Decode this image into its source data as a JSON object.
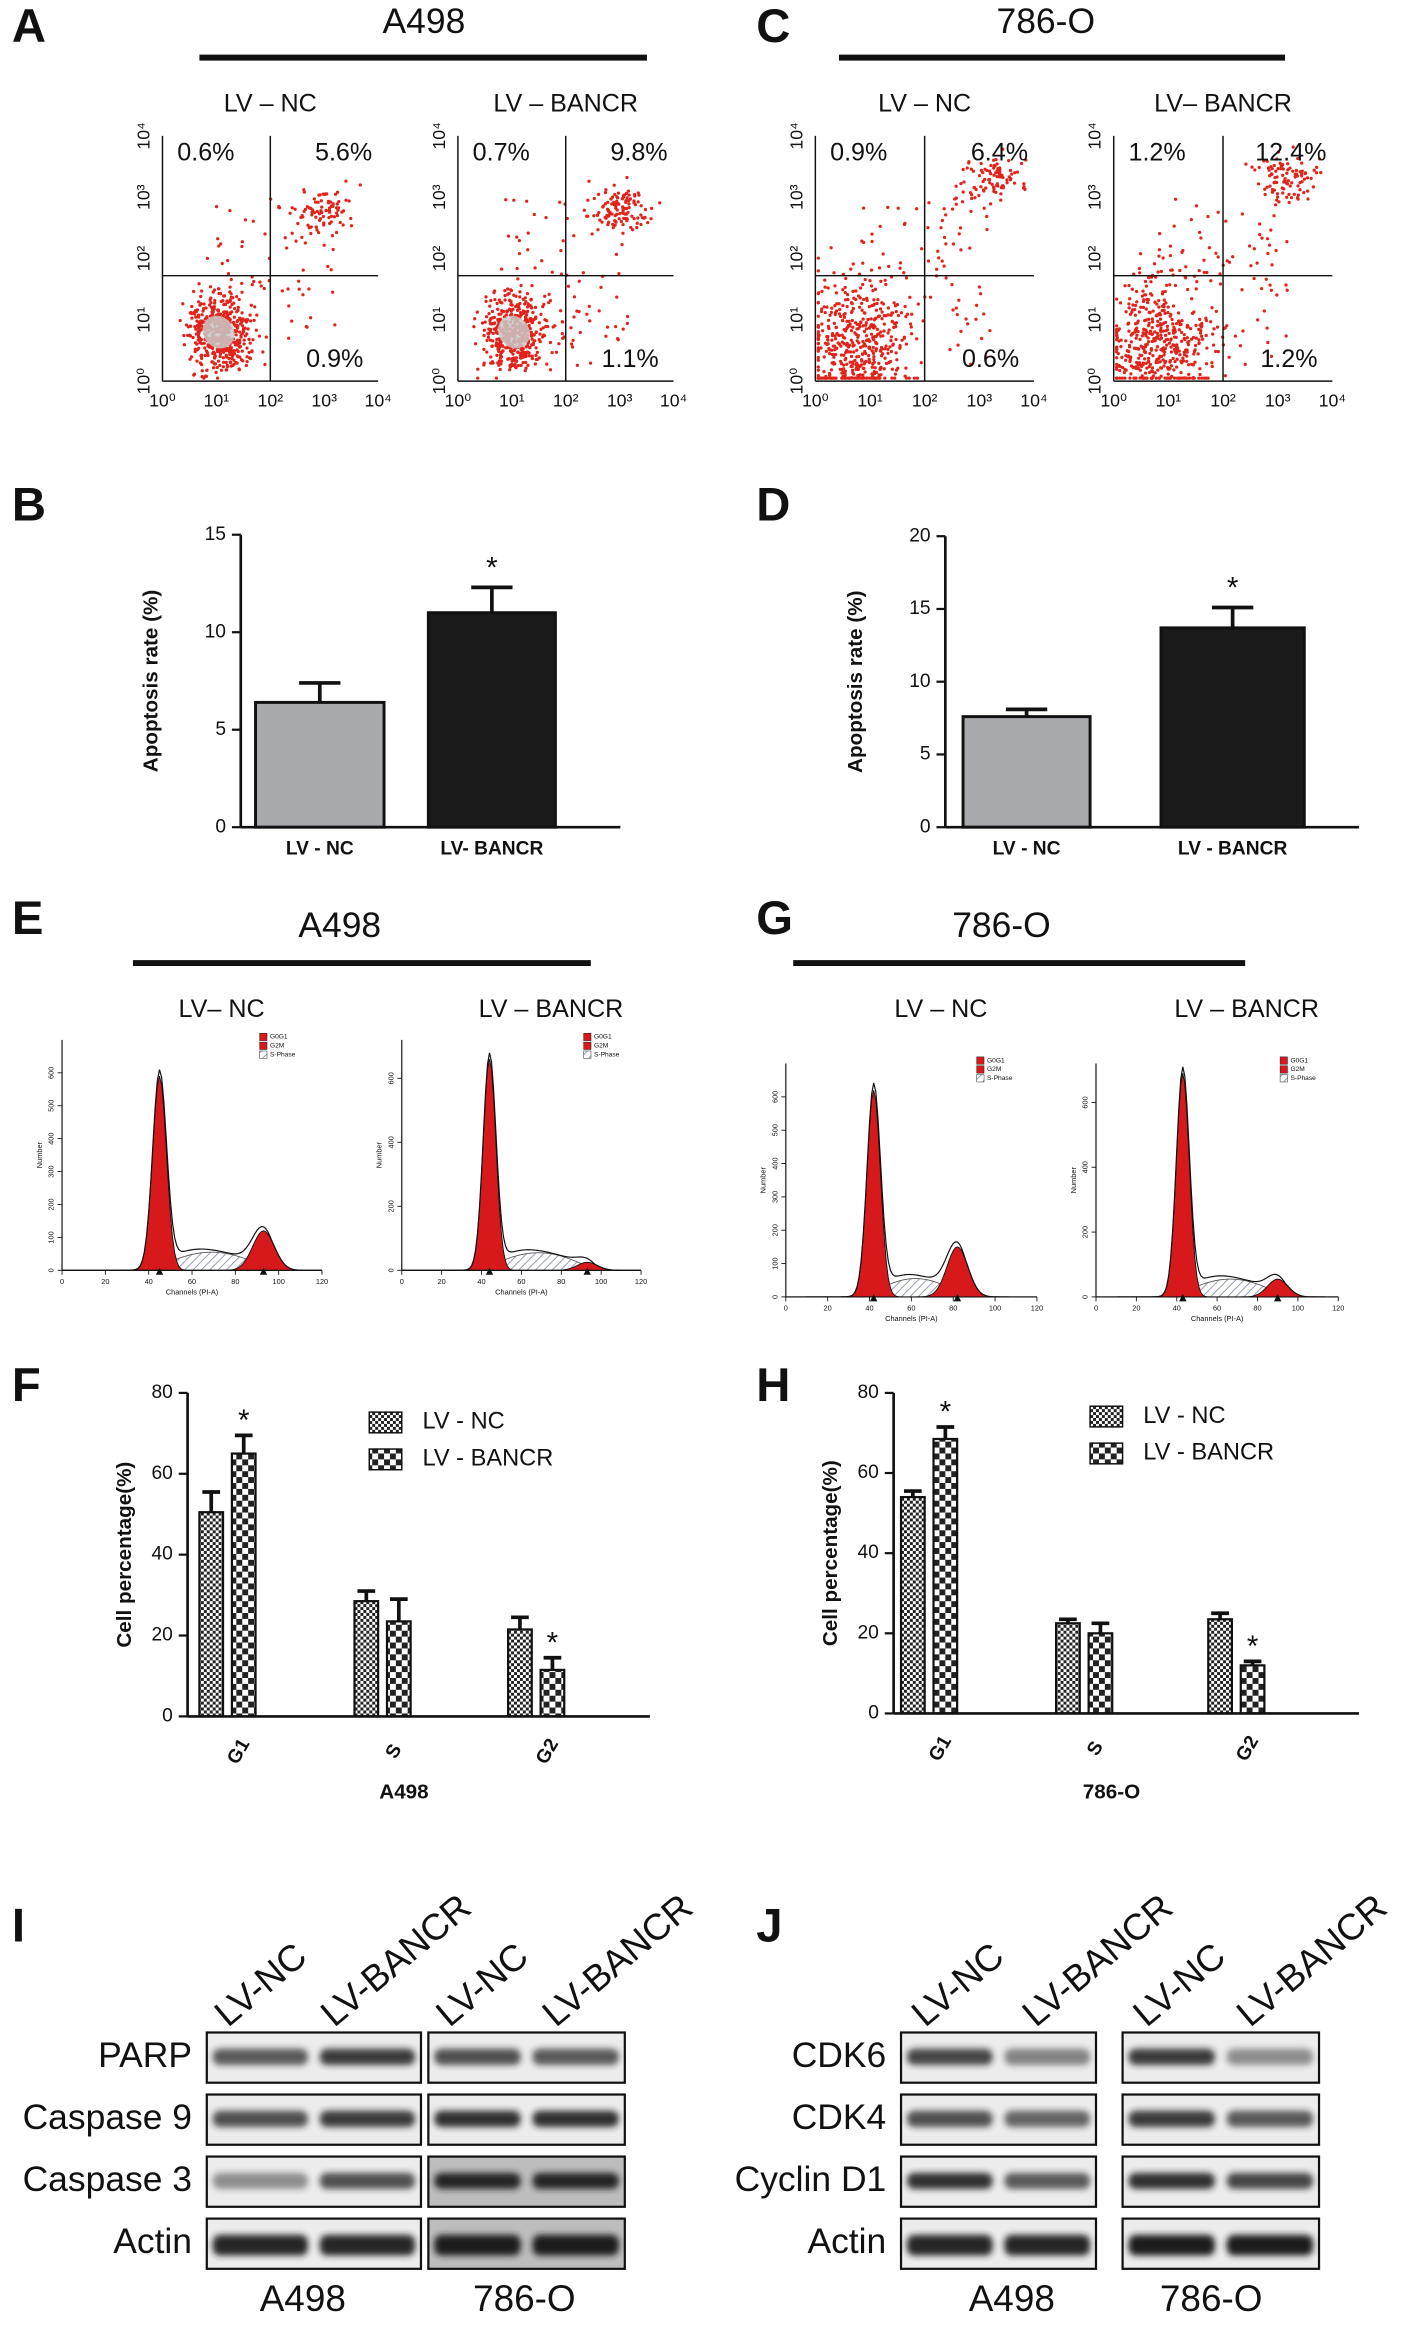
{
  "flow": [
    {
      "letter": "A",
      "title": "A498",
      "plots": [
        {
          "title": "LV – NC",
          "ul": "0.6%",
          "ur": "5.6%",
          "lr": "0.9%"
        },
        {
          "title": "LV – BANCR",
          "ul": "0.7%",
          "ur": "9.8%",
          "lr": "1.1%"
        }
      ]
    },
    {
      "letter": "C",
      "title": "786-O",
      "plots": [
        {
          "title": "LV – NC",
          "ul": "0.9%",
          "ur": "6.4%",
          "lr": "0.6%"
        },
        {
          "title": "LV– BANCR",
          "ul": "1.2%",
          "ur": "12.4%",
          "lr": "1.2%"
        }
      ]
    }
  ],
  "flow_ticks": [
    "10⁰",
    "10¹",
    "10²",
    "10³",
    "10⁴"
  ],
  "chart_data": [
    {
      "letter": "B",
      "type": "bar",
      "ylabel": "Apoptosis rate (%)",
      "categories": [
        "LV - NC",
        "LV- BANCR"
      ],
      "values": [
        6.4,
        11.0
      ],
      "errors": [
        1.0,
        1.3
      ],
      "colors": [
        "#a8a9ad",
        "#1b1b1b"
      ],
      "ylim": [
        0,
        15
      ],
      "yticks": [
        0,
        5,
        10,
        15
      ],
      "annotations": [
        {
          "text": "*",
          "category": 1
        }
      ]
    },
    {
      "letter": "D",
      "type": "bar",
      "ylabel": "Apoptosis rate (%)",
      "categories": [
        "LV - NC",
        "LV - BANCR"
      ],
      "values": [
        7.6,
        13.7
      ],
      "errors": [
        0.5,
        1.4
      ],
      "colors": [
        "#a8a9ad",
        "#1b1b1b"
      ],
      "ylim": [
        0,
        20
      ],
      "yticks": [
        0,
        5,
        10,
        15,
        20
      ],
      "annotations": [
        {
          "text": "*",
          "category": 1
        }
      ]
    },
    {
      "letter": "F",
      "type": "grouped_bar",
      "ylabel": "Cell percentage(%)",
      "xlabel": "A498",
      "categories": [
        "G1",
        "S",
        "G2"
      ],
      "series": [
        {
          "name": "LV - NC",
          "pattern": "fine",
          "values": [
            50.5,
            28.5,
            21.5
          ],
          "errors": [
            5.0,
            2.5,
            3.0
          ]
        },
        {
          "name": "LV - BANCR",
          "pattern": "coarse",
          "values": [
            65.0,
            23.5,
            11.5
          ],
          "errors": [
            4.5,
            5.5,
            3.0
          ]
        }
      ],
      "ylim": [
        0,
        80
      ],
      "yticks": [
        0,
        20,
        40,
        60,
        80
      ],
      "annotations": [
        {
          "text": "*",
          "series": 1,
          "category": 0
        },
        {
          "text": "*",
          "series": 1,
          "category": 2
        }
      ]
    },
    {
      "letter": "H",
      "type": "grouped_bar",
      "ylabel": "Cell percentage(%)",
      "xlabel": "786-O",
      "categories": [
        "G1",
        "S",
        "G2"
      ],
      "series": [
        {
          "name": "LV - NC",
          "pattern": "fine",
          "values": [
            54.0,
            22.5,
            23.5
          ],
          "errors": [
            1.5,
            1.0,
            1.5
          ]
        },
        {
          "name": "LV - BANCR",
          "pattern": "coarse",
          "values": [
            68.5,
            20.0,
            12.0
          ],
          "errors": [
            3.0,
            2.5,
            1.0
          ]
        }
      ],
      "ylim": [
        0,
        80
      ],
      "yticks": [
        0,
        20,
        40,
        60,
        80
      ],
      "annotations": [
        {
          "text": "*",
          "series": 1,
          "category": 0
        },
        {
          "text": "*",
          "series": 1,
          "category": 2
        }
      ]
    }
  ],
  "cell_cycle": [
    {
      "letter": "E",
      "title": "A498",
      "plots": [
        {
          "title": "LV– NC",
          "yticks": [
            0,
            100,
            200,
            300,
            400,
            500,
            600
          ]
        },
        {
          "title": "LV – BANCR",
          "yticks": [
            0,
            200,
            400,
            600
          ]
        }
      ]
    },
    {
      "letter": "G",
      "title": "786-O",
      "plots": [
        {
          "title": "LV – NC",
          "yticks": [
            0,
            100,
            200,
            300,
            400,
            500,
            600
          ]
        },
        {
          "title": "LV – BANCR",
          "yticks": [
            0,
            200,
            400,
            600
          ]
        }
      ]
    }
  ],
  "cell_cycle_xticks": [
    0,
    20,
    40,
    60,
    80,
    100,
    120
  ],
  "cell_cycle_xlabel": "Channels (PI-A)",
  "cell_cycle_ylabel": "Number",
  "cell_cycle_legend": [
    "G0G1",
    "G2M",
    "S-Phase"
  ],
  "blots": [
    {
      "letter": "I",
      "columns": [
        "LV-NC",
        "LV-BANCR",
        "LV-NC",
        "LV-BANCR"
      ],
      "rows": [
        "PARP",
        "Caspase 9",
        "Caspase 3",
        "Actin"
      ],
      "groups": [
        "A498",
        "786-O"
      ]
    },
    {
      "letter": "J",
      "columns": [
        "LV-NC",
        "LV-BANCR",
        "LV-NC",
        "LV-BANCR"
      ],
      "rows": [
        "CDK6",
        "CDK4",
        "Cyclin D1",
        "Actin"
      ],
      "groups": [
        "A498",
        "786-O"
      ]
    }
  ]
}
